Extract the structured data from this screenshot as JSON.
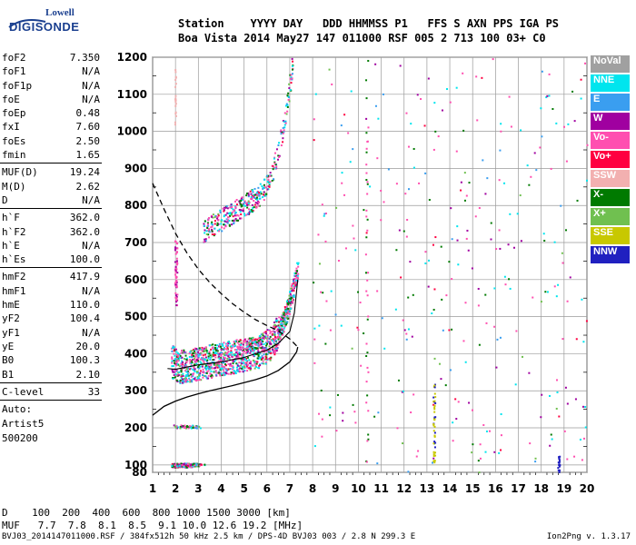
{
  "logo": {
    "line1": "Lowell",
    "line2": "DIGISONDE"
  },
  "header": {
    "row1": "Station    YYYY DAY   DDD HHMMSS P1   FFS S AXN PPS IGA PS",
    "row2": "Boa Vista 2014 May27 147 011000 RSF 005 2 713 100 03+ C0"
  },
  "params": [
    {
      "k": "foF2",
      "v": "7.350"
    },
    {
      "k": "foF1",
      "v": "N/A"
    },
    {
      "k": "foF1p",
      "v": "N/A"
    },
    {
      "k": "foE",
      "v": "N/A"
    },
    {
      "k": "foEp",
      "v": "0.48"
    },
    {
      "k": "fxI",
      "v": "7.60"
    },
    {
      "k": "foEs",
      "v": "2.50"
    },
    {
      "k": "fmin",
      "v": "1.65"
    },
    {
      "sep": true
    },
    {
      "k": "MUF(D)",
      "v": "19.24"
    },
    {
      "k": "M(D)",
      "v": "2.62"
    },
    {
      "k": "D",
      "v": "N/A"
    },
    {
      "sep": true
    },
    {
      "k": "h`F",
      "v": "362.0"
    },
    {
      "k": "h`F2",
      "v": "362.0"
    },
    {
      "k": "h`E",
      "v": "N/A"
    },
    {
      "k": "h`Es",
      "v": "100.0"
    },
    {
      "sep": true
    },
    {
      "k": "hmF2",
      "v": "417.9"
    },
    {
      "k": "hmF1",
      "v": "N/A"
    },
    {
      "k": "hmE",
      "v": "110.0"
    },
    {
      "k": "yF2",
      "v": "100.4"
    },
    {
      "k": "yF1",
      "v": "N/A"
    },
    {
      "k": "yE",
      "v": "20.0"
    },
    {
      "k": "B0",
      "v": "100.3"
    },
    {
      "k": "B1",
      "v": "2.10"
    },
    {
      "sep": true
    },
    {
      "k": "C-level",
      "v": "33"
    },
    {
      "sep": true
    }
  ],
  "auto": {
    "label": "Auto:",
    "artist": "Artist5",
    "version": "500200"
  },
  "legend": [
    {
      "label": "NoVal",
      "color": "#a0a0a0",
      "text": "#ffffff"
    },
    {
      "label": "NNE",
      "color": "#00e5ee",
      "text": "#ffffff"
    },
    {
      "label": "E",
      "color": "#3a9ef0",
      "text": "#ffffff"
    },
    {
      "label": "W",
      "color": "#a000a0",
      "text": "#ffffff"
    },
    {
      "label": "Vo-",
      "color": "#ff4fb0",
      "text": "#ffffff"
    },
    {
      "label": "Vo+",
      "color": "#ff0040",
      "text": "#ffffff"
    },
    {
      "label": "SSW",
      "color": "#f2b0b0",
      "text": "#ffffff"
    },
    {
      "label": "X-",
      "color": "#007a00",
      "text": "#ffffff"
    },
    {
      "label": "X+",
      "color": "#70c050",
      "text": "#ffffff"
    },
    {
      "label": "SSE",
      "color": "#c8c800",
      "text": "#ffffff"
    },
    {
      "label": "NNW",
      "color": "#2020c0",
      "text": "#ffffff"
    }
  ],
  "chart_data": {
    "type": "scatter",
    "xlabel": "",
    "ylabel": "",
    "xlim": [
      1,
      20
    ],
    "ylim": [
      80,
      1200
    ],
    "x_ticks": [
      1,
      2,
      3,
      4,
      5,
      6,
      7,
      8,
      9,
      10,
      11,
      12,
      13,
      14,
      15,
      16,
      17,
      18,
      19,
      20
    ],
    "y_ticks": [
      80,
      100,
      200,
      300,
      400,
      500,
      600,
      700,
      800,
      900,
      1000,
      1100,
      1200
    ],
    "grid": true,
    "series": [
      {
        "kind": "profile_solid",
        "x": [
          1.0,
          1.5,
          2.0,
          2.5,
          3.0,
          3.5,
          4.0,
          4.5,
          5.0,
          5.5,
          6.0,
          6.5,
          7.0,
          7.3,
          7.35
        ],
        "y": [
          234,
          258,
          272,
          283,
          292,
          300,
          307,
          314,
          322,
          330,
          340,
          355,
          378,
          405,
          418
        ]
      },
      {
        "kind": "profile_dashed",
        "x": [
          1.0,
          1.5,
          2.0,
          2.5,
          3.0,
          3.5,
          4.0,
          4.5,
          5.0,
          5.5,
          6.0,
          6.5,
          7.0,
          7.35
        ],
        "y": [
          860,
          790,
          725,
          672,
          628,
          592,
          562,
          535,
          512,
          492,
          476,
          462,
          440,
          418
        ]
      },
      {
        "kind": "trace_fit",
        "x": [
          1.65,
          2.0,
          3.0,
          4.0,
          5.0,
          6.0,
          6.5,
          7.0,
          7.2,
          7.35
        ],
        "y": [
          360,
          358,
          370,
          378,
          390,
          410,
          428,
          460,
          510,
          600
        ]
      }
    ]
  },
  "footer": {
    "row1": "D    100  200  400  600  800 1000 1500 3000 [km]",
    "row2": "MUF   7.7  7.8  8.1  8.5  9.1 10.0 12.6 19.2 [MHz]"
  },
  "bottom": {
    "left": "BVJ03_2014147011000.RSF / 384fx512h 50 kHz 2.5 km / DPS-4D BVJ03 003 / 2.8 N 299.3 E",
    "right": "Ion2Png v. 1.3.17"
  }
}
